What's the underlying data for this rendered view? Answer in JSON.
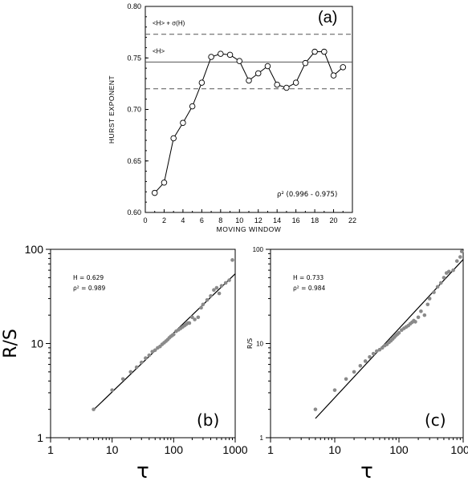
{
  "chart_data": [
    {
      "type": "line",
      "panel_label": "(a)",
      "xlabel": "MOVING WINDOW",
      "ylabel": "HURST EXPONENT",
      "xlim": [
        0,
        22
      ],
      "ylim": [
        0.6,
        0.8
      ],
      "x_ticks": [
        0,
        2,
        4,
        6,
        8,
        10,
        12,
        14,
        16,
        18,
        20,
        22
      ],
      "x_tick_labels": [
        "0",
        "2",
        "4",
        "6",
        "8",
        "10",
        "12",
        "14",
        "16",
        "18",
        "20",
        "22"
      ],
      "y_ticks": [
        0.6,
        0.65,
        0.7,
        0.75,
        0.8
      ],
      "y_tick_labels": [
        "0.60",
        "0.65",
        "0.70",
        "0.75",
        "0.80"
      ],
      "x": [
        1,
        2,
        3,
        4,
        5,
        6,
        7,
        8,
        9,
        10,
        11,
        12,
        13,
        14,
        15,
        16,
        17,
        18,
        19,
        20,
        21
      ],
      "y": [
        0.619,
        0.629,
        0.672,
        0.687,
        0.703,
        0.726,
        0.751,
        0.754,
        0.753,
        0.747,
        0.728,
        0.735,
        0.742,
        0.724,
        0.721,
        0.726,
        0.745,
        0.756,
        0.756,
        0.733,
        0.741
      ],
      "reference_lines": [
        {
          "label": "<H> + σ(H)",
          "y": 0.773,
          "style": "dashed"
        },
        {
          "label": "<H>",
          "y": 0.746,
          "style": "solid"
        },
        {
          "label": "",
          "y": 0.72,
          "style": "dashed"
        }
      ],
      "annotation": "ρ² (0.996 - 0.975)"
    },
    {
      "type": "scatter",
      "panel_label": "(b)",
      "xlabel": "τ",
      "ylabel": "R/S",
      "x_scale": "log",
      "y_scale": "log",
      "xlim": [
        1,
        1000
      ],
      "ylim": [
        1,
        100
      ],
      "x_tick_labels": [
        "1",
        "10",
        "100",
        "1000"
      ],
      "y_tick_labels": [
        "1",
        "10",
        "100"
      ],
      "annotations": [
        "H = 0.629",
        "ρ² = 0.989"
      ],
      "fit_line": {
        "x": [
          5,
          1000
        ],
        "y": [
          1.98,
          55
        ]
      },
      "points": {
        "x": [
          5,
          10,
          15,
          20,
          25,
          30,
          35,
          40,
          45,
          50,
          55,
          60,
          65,
          70,
          75,
          80,
          85,
          90,
          95,
          100,
          110,
          120,
          130,
          140,
          150,
          160,
          170,
          180,
          200,
          220,
          250,
          280,
          300,
          350,
          400,
          450,
          500,
          550,
          600,
          700,
          800,
          900
        ],
        "y": [
          2.0,
          3.2,
          4.2,
          5.0,
          5.6,
          6.3,
          7.0,
          7.5,
          8.2,
          8.5,
          9.0,
          9.3,
          9.8,
          10.2,
          10.6,
          11.0,
          11.5,
          11.9,
          12.2,
          12.5,
          13.5,
          14.0,
          14.5,
          15.0,
          15.5,
          16.0,
          16.5,
          16.5,
          19.0,
          18.0,
          19.0,
          24.0,
          26.0,
          29.0,
          32.0,
          37.0,
          39.0,
          34.0,
          41.0,
          44.0,
          47.0,
          77.0
        ]
      }
    },
    {
      "type": "scatter",
      "panel_label": "(c)",
      "xlabel": "τ",
      "ylabel": "R/S",
      "x_scale": "log",
      "y_scale": "log",
      "xlim": [
        1,
        1000
      ],
      "ylim": [
        1,
        100
      ],
      "x_tick_labels": [
        "1",
        "10",
        "100",
        "1000"
      ],
      "y_tick_labels": [
        "1",
        "10",
        "100"
      ],
      "annotations": [
        "H = 0.733",
        "ρ² = 0.984"
      ],
      "fit_line": {
        "x": [
          5,
          1000
        ],
        "y": [
          1.6,
          78
        ]
      },
      "points": {
        "x": [
          5,
          10,
          15,
          20,
          25,
          30,
          35,
          40,
          45,
          50,
          55,
          60,
          65,
          70,
          75,
          80,
          85,
          90,
          95,
          100,
          110,
          120,
          130,
          140,
          150,
          160,
          170,
          180,
          200,
          220,
          250,
          280,
          300,
          350,
          400,
          450,
          500,
          550,
          600,
          700,
          800,
          900,
          950
        ],
        "y": [
          2.0,
          3.2,
          4.2,
          5.0,
          5.8,
          6.5,
          7.2,
          7.8,
          8.3,
          8.6,
          9.0,
          9.5,
          9.8,
          10.3,
          10.7,
          11.2,
          11.7,
          12.2,
          12.6,
          13.0,
          13.9,
          14.5,
          15.0,
          15.5,
          16.2,
          16.8,
          17.5,
          17.0,
          19.0,
          22.0,
          20.0,
          26.0,
          30.0,
          35.0,
          40.0,
          44.0,
          50.0,
          56.0,
          58.0,
          60.0,
          75.0,
          83.0,
          95.0
        ]
      }
    }
  ]
}
